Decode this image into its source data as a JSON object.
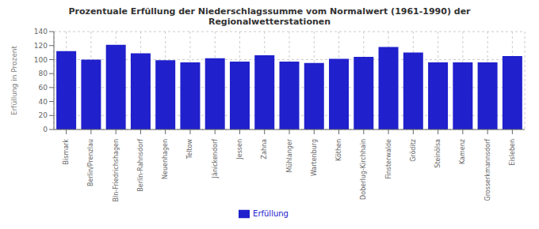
{
  "chart_data": {
    "type": "bar",
    "title": "Prozentuale Erfüllung der Niederschlagssumme vom Normalwert (1961-1990) der\nRegionalwetterstationen",
    "ylabel": "Erfüllung in Prozent",
    "categories": [
      "Bismark",
      "Berlin/Prenzlau",
      "Bln-Friedrichshagen",
      "Berlin-Rahnsdorf",
      "Neuenhagen",
      "Teltow",
      "Jänickendorf",
      "Jessen",
      "Zahna",
      "Mühlanger",
      "Wartenburg",
      "Köthen",
      "Doberlug-Kirchhain",
      "Finsterwalde",
      "Gröditz",
      "Steinölsa",
      "Kamenz",
      "Grosserkmannsdorf",
      "Eisleben"
    ],
    "series": [
      {
        "name": "Erfüllung",
        "color": "#2020cc",
        "values": [
          112,
          100,
          121,
          109,
          99,
          96,
          102,
          97,
          106,
          97,
          95,
          101,
          104,
          118,
          110,
          96,
          96,
          96,
          105
        ]
      }
    ],
    "ylim": [
      0,
      140
    ],
    "yticks": [
      0,
      20,
      40,
      60,
      80,
      100,
      120,
      140
    ],
    "grid": true,
    "legend": "bottom"
  }
}
